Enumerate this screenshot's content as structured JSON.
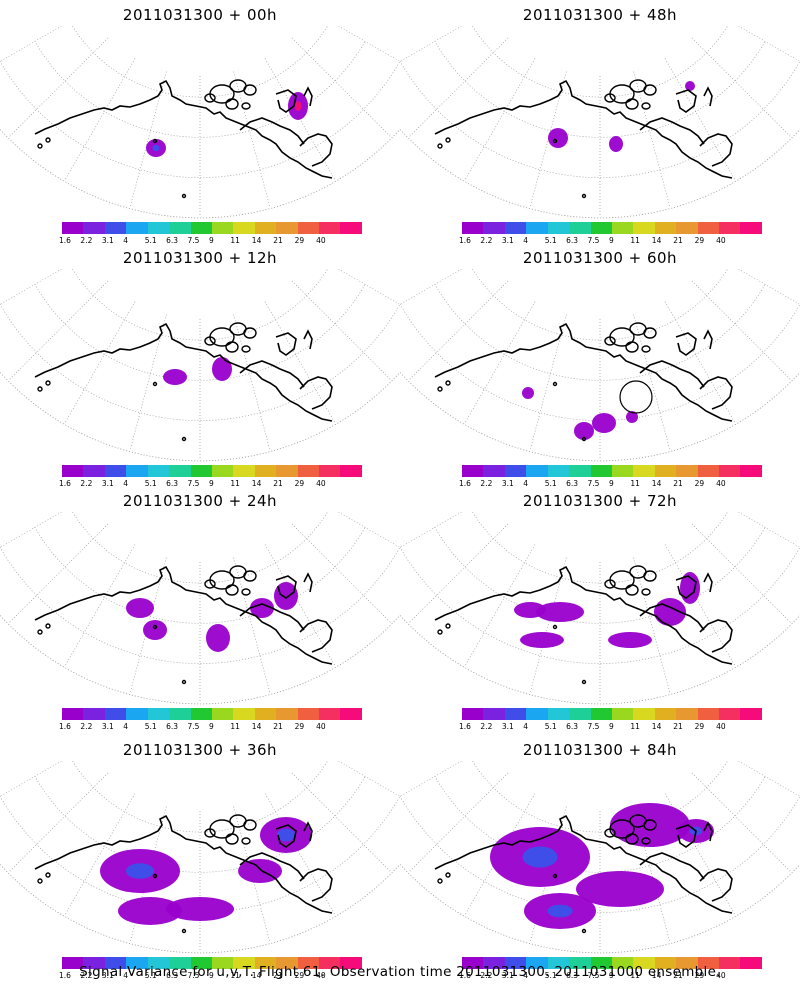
{
  "panels": [
    {
      "id": "p00",
      "title": "2011031300 + 00h",
      "col": 0,
      "row": 0,
      "level": 0
    },
    {
      "id": "p48",
      "title": "2011031300 + 48h",
      "col": 1,
      "row": 0,
      "level": 4
    },
    {
      "id": "p12",
      "title": "2011031300 + 12h",
      "col": 0,
      "row": 1,
      "level": 1
    },
    {
      "id": "p60",
      "title": "2011031300 + 60h",
      "col": 1,
      "row": 1,
      "level": 5
    },
    {
      "id": "p24",
      "title": "2011031300 + 24h",
      "col": 0,
      "row": 2,
      "level": 2
    },
    {
      "id": "p72",
      "title": "2011031300 + 72h",
      "col": 1,
      "row": 2,
      "level": 6
    },
    {
      "id": "p36",
      "title": "2011031300 + 36h",
      "col": 0,
      "row": 3,
      "level": 3
    },
    {
      "id": "p84",
      "title": "2011031300 + 84h",
      "col": 1,
      "row": 3,
      "level": 7
    }
  ],
  "colorbar": {
    "colors": [
      "#9900cc",
      "#7a22e0",
      "#3f4ee8",
      "#1aa6f0",
      "#22c6d6",
      "#1fcf98",
      "#22c832",
      "#9ad820",
      "#d8d820",
      "#e0b020",
      "#e89830",
      "#f06040",
      "#f53060",
      "#f50c7a"
    ],
    "ticks": [
      "1.6",
      "2.2",
      "3.1",
      "4",
      "5.1",
      "6.3",
      "7.5",
      "9",
      "11",
      "14",
      "21",
      "29",
      "40",
      ""
    ]
  },
  "caption": "Signal Variance for u,v,T. Flight 61. Observation time 2011031300. 2011031000 ensemble."
}
